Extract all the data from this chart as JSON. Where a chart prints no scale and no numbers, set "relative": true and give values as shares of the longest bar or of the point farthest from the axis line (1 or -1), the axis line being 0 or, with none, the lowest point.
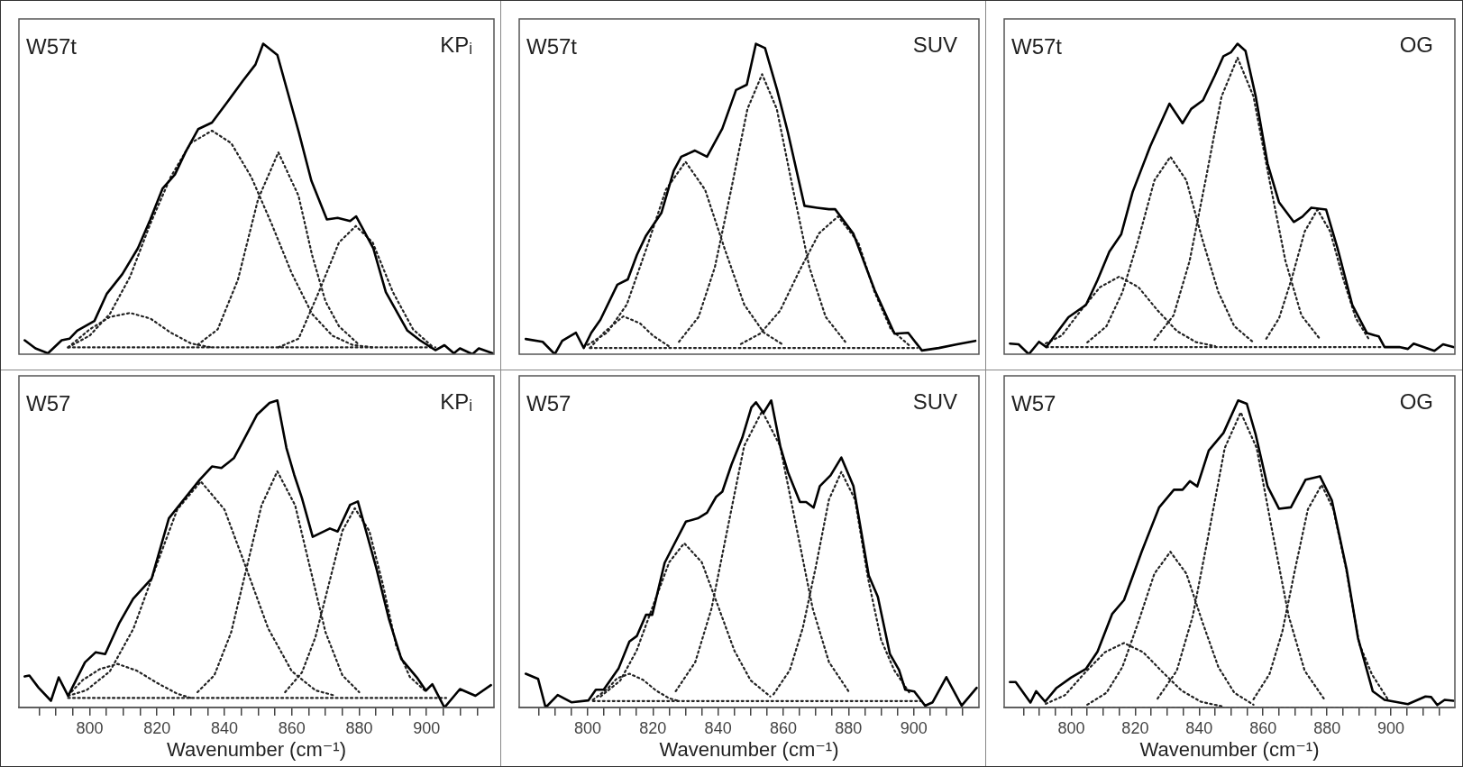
{
  "chart_data": [
    {
      "type": "line",
      "relative": true,
      "xlim": [
        779,
        920
      ],
      "tick_labels": false,
      "annotations": [
        "W57t",
        "KPᵢ"
      ],
      "series": [
        {
          "color": "#000000",
          "line_style": "solid",
          "x": [
            780.7,
            783.9,
            787.6,
            791.7,
            794,
            796.3,
            801.4,
            805.1,
            809.7,
            814.3,
            818,
            821.6,
            825.3,
            828.5,
            832.2,
            836.3,
            840.9,
            845.5,
            849.2,
            851.5,
            855.7,
            858.9,
            862.1,
            865.8,
            870.4,
            873.6,
            877.3,
            879.1,
            884.2,
            887.9,
            894.3,
            898,
            902.6,
            905.3,
            908.1,
            909.9,
            913.6,
            915.5,
            919.6
          ],
          "values": [
            0.045,
            0.019,
            0.003,
            0.045,
            0.05,
            0.076,
            0.107,
            0.195,
            0.258,
            0.341,
            0.434,
            0.533,
            0.579,
            0.652,
            0.725,
            0.746,
            0.813,
            0.881,
            0.933,
            1,
            0.964,
            0.839,
            0.714,
            0.559,
            0.434,
            0.439,
            0.429,
            0.444,
            0.341,
            0.2,
            0.076,
            0.045,
            0.013,
            0.029,
            0.003,
            0.019,
            0,
            0.019,
            0.003
          ]
        },
        {
          "color": "#222222",
          "line_style": "dotted",
          "x": [
            793.6,
            902.6
          ],
          "values": [
            0.022,
            0.022
          ]
        },
        {
          "color": "#222222",
          "line_style": "dotted",
          "x": [
            793.6,
            800,
            806,
            812,
            818,
            824,
            830,
            836
          ],
          "values": [
            0.022,
            0.08,
            0.12,
            0.133,
            0.115,
            0.07,
            0.035,
            0.022
          ]
        },
        {
          "color": "#222222",
          "line_style": "dotted",
          "x": [
            793.6,
            800,
            806,
            812,
            818,
            824,
            830,
            836.3,
            842,
            848,
            854,
            860,
            866,
            872,
            878,
            884
          ],
          "values": [
            0.022,
            0.06,
            0.13,
            0.25,
            0.42,
            0.57,
            0.68,
            0.72,
            0.68,
            0.57,
            0.42,
            0.26,
            0.13,
            0.06,
            0.03,
            0.022
          ]
        },
        {
          "color": "#222222",
          "line_style": "dotted",
          "x": [
            832,
            838,
            844,
            850,
            856,
            862,
            866,
            870,
            874,
            880
          ],
          "values": [
            0.03,
            0.08,
            0.24,
            0.5,
            0.65,
            0.51,
            0.32,
            0.17,
            0.09,
            0.03
          ]
        },
        {
          "color": "#222222",
          "line_style": "dotted",
          "x": [
            856,
            862,
            868,
            874,
            879,
            884,
            890,
            896,
            902
          ],
          "values": [
            0.022,
            0.05,
            0.2,
            0.36,
            0.413,
            0.36,
            0.2,
            0.08,
            0.022
          ]
        }
      ]
    },
    {
      "type": "line",
      "relative": true,
      "xlim": [
        779,
        920
      ],
      "tick_labels": false,
      "annotations": [
        "W57t",
        "SUV"
      ],
      "series": [
        {
          "color": "#000000",
          "line_style": "solid",
          "x": [
            781,
            786.2,
            789.9,
            792.2,
            796.4,
            798.8,
            801.1,
            803.9,
            809.1,
            812.3,
            815.1,
            817.9,
            822.6,
            826.4,
            828.7,
            832.9,
            836.6,
            841.3,
            845.5,
            848.8,
            851.6,
            854.4,
            858.1,
            861.4,
            866.5,
            870.3,
            874,
            875.9,
            881.5,
            888,
            894.1,
            898.3,
            902.5,
            907.7,
            913.3,
            918.9
          ],
          "values": [
            0.049,
            0.04,
            0,
            0.043,
            0.069,
            0.02,
            0.069,
            0.111,
            0.224,
            0.241,
            0.32,
            0.382,
            0.455,
            0.591,
            0.636,
            0.656,
            0.636,
            0.727,
            0.851,
            0.868,
            1,
            0.986,
            0.851,
            0.715,
            0.478,
            0.472,
            0.467,
            0.467,
            0.388,
            0.207,
            0.066,
            0.069,
            0.012,
            0.02,
            0.032,
            0.043
          ]
        },
        {
          "color": "#222222",
          "line_style": "dotted",
          "x": [
            800.7,
            901.1
          ],
          "values": [
            0.02,
            0.02
          ]
        },
        {
          "color": "#222222",
          "line_style": "dotted",
          "x": [
            800.7,
            805,
            810.9,
            816,
            820,
            825
          ],
          "values": [
            0.02,
            0.07,
            0.122,
            0.1,
            0.06,
            0.025
          ]
        },
        {
          "color": "#222222",
          "line_style": "dotted",
          "x": [
            800,
            806,
            812,
            818,
            824,
            830,
            836,
            842,
            848,
            854,
            860
          ],
          "values": [
            0.03,
            0.07,
            0.16,
            0.34,
            0.53,
            0.62,
            0.53,
            0.34,
            0.16,
            0.07,
            0.03
          ]
        },
        {
          "color": "#222222",
          "line_style": "dotted",
          "x": [
            828,
            834,
            839,
            844,
            849,
            853.5,
            858,
            863,
            868,
            873,
            879
          ],
          "values": [
            0.04,
            0.12,
            0.28,
            0.53,
            0.79,
            0.902,
            0.79,
            0.53,
            0.28,
            0.12,
            0.04
          ]
        },
        {
          "color": "#222222",
          "line_style": "dotted",
          "x": [
            847,
            853,
            859,
            865,
            871,
            876.8,
            883,
            888,
            893,
            899
          ],
          "values": [
            0.033,
            0.067,
            0.14,
            0.27,
            0.39,
            0.444,
            0.36,
            0.2,
            0.08,
            0.025
          ]
        }
      ]
    },
    {
      "type": "line",
      "relative": true,
      "xlim": [
        779,
        920
      ],
      "tick_labels": false,
      "annotations": [
        "W57t",
        "OG"
      ],
      "series": [
        {
          "color": "#000000",
          "line_style": "solid",
          "x": [
            780.8,
            783.5,
            786.7,
            789.9,
            792.2,
            795.4,
            799.1,
            804.6,
            808.2,
            811.9,
            815.6,
            819.2,
            824.7,
            830.7,
            834.8,
            837.5,
            841.2,
            844.9,
            847.6,
            849.9,
            852,
            854.5,
            857.7,
            861.4,
            865,
            869.6,
            872.3,
            875.1,
            879.7,
            883.3,
            887.9,
            892.5,
            896.2,
            898,
            902.6,
            905.3,
            907.1,
            913.6,
            916.3,
            919.5
          ],
          "values": [
            0.034,
            0.032,
            0,
            0.04,
            0.023,
            0.068,
            0.119,
            0.159,
            0.239,
            0.33,
            0.386,
            0.523,
            0.67,
            0.807,
            0.744,
            0.79,
            0.818,
            0.898,
            0.96,
            0.972,
            1,
            0.977,
            0.83,
            0.614,
            0.489,
            0.426,
            0.443,
            0.472,
            0.466,
            0.341,
            0.159,
            0.068,
            0.057,
            0.023,
            0.023,
            0.017,
            0.034,
            0.011,
            0.032,
            0.023
          ]
        },
        {
          "color": "#222222",
          "line_style": "dotted",
          "x": [
            792.2,
            897.1
          ],
          "values": [
            0.023,
            0.023
          ]
        },
        {
          "color": "#222222",
          "line_style": "dotted",
          "x": [
            792,
            797,
            803,
            809,
            815,
            821,
            827,
            833,
            839,
            845
          ],
          "values": [
            0.035,
            0.06,
            0.141,
            0.216,
            0.25,
            0.216,
            0.141,
            0.075,
            0.039,
            0.026
          ]
        },
        {
          "color": "#222222",
          "line_style": "dotted",
          "x": [
            805,
            811,
            816,
            821,
            826,
            831,
            836,
            841,
            846,
            851,
            857
          ],
          "values": [
            0.038,
            0.09,
            0.2,
            0.37,
            0.56,
            0.636,
            0.56,
            0.37,
            0.2,
            0.09,
            0.038
          ]
        },
        {
          "color": "#222222",
          "line_style": "dotted",
          "x": [
            826,
            832,
            837,
            842,
            847,
            852,
            857,
            862,
            867,
            872,
            878
          ],
          "values": [
            0.046,
            0.125,
            0.3,
            0.56,
            0.83,
            0.955,
            0.83,
            0.56,
            0.3,
            0.125,
            0.046
          ]
        },
        {
          "color": "#222222",
          "line_style": "dotted",
          "x": [
            861,
            865,
            869,
            873,
            877,
            881,
            885,
            889,
            893
          ],
          "values": [
            0.05,
            0.116,
            0.245,
            0.395,
            0.466,
            0.395,
            0.245,
            0.116,
            0.05
          ]
        }
      ]
    },
    {
      "type": "line",
      "relative": true,
      "xlim": [
        779,
        920
      ],
      "tick_labels": "x",
      "xlabel": "Wavenumber (cm⁻¹)",
      "xticks": [
        {
          "value": 785,
          "label": null
        },
        {
          "value": 790,
          "label": null
        },
        {
          "value": 795,
          "label": null
        },
        800,
        {
          "value": 805,
          "label": null
        },
        {
          "value": 810,
          "label": null
        },
        {
          "value": 815,
          "label": null
        },
        820,
        {
          "value": 825,
          "label": null
        },
        {
          "value": 830,
          "label": null
        },
        {
          "value": 835,
          "label": null
        },
        840,
        {
          "value": 845,
          "label": null
        },
        {
          "value": 850,
          "label": null
        },
        {
          "value": 855,
          "label": null
        },
        860,
        {
          "value": 865,
          "label": null
        },
        {
          "value": 870,
          "label": null
        },
        {
          "value": 875,
          "label": null
        },
        880,
        {
          "value": 885,
          "label": null
        },
        {
          "value": 890,
          "label": null
        },
        {
          "value": 895,
          "label": null
        },
        900,
        {
          "value": 905,
          "label": null
        },
        {
          "value": 910,
          "label": null
        },
        {
          "value": 915,
          "label": null
        }
      ],
      "annotations": [
        "W57",
        "KPᵢ"
      ],
      "series": [
        {
          "color": "#000000",
          "line_style": "solid",
          "x": [
            780.7,
            782.1,
            784.8,
            788.5,
            790.8,
            793.6,
            798.6,
            801.8,
            804.6,
            808.7,
            812.9,
            818.4,
            823.5,
            829,
            832.7,
            836.3,
            839.1,
            842.8,
            845.5,
            849.7,
            853.4,
            855.7,
            858.4,
            860.7,
            863,
            866.2,
            871.3,
            873.6,
            877.3,
            879.6,
            885.1,
            888.8,
            892.5,
            897.1,
            899.8,
            901.7,
            905.3,
            909.9,
            914.5,
            919.1
          ],
          "values": [
            0.101,
            0.104,
            0.065,
            0.022,
            0.098,
            0.038,
            0.147,
            0.18,
            0.174,
            0.273,
            0.354,
            0.42,
            0.616,
            0.692,
            0.742,
            0.785,
            0.78,
            0.812,
            0.867,
            0.954,
            0.992,
            1,
            0.845,
            0.758,
            0.682,
            0.556,
            0.583,
            0.573,
            0.66,
            0.671,
            0.453,
            0.289,
            0.158,
            0.098,
            0.055,
            0.076,
            0,
            0.06,
            0.038,
            0.073
          ]
        },
        {
          "color": "#222222",
          "line_style": "dotted",
          "x": [
            793.6,
            905.8
          ],
          "values": [
            0.031,
            0.031
          ]
        },
        {
          "color": "#222222",
          "line_style": "dotted",
          "x": [
            793.6,
            798,
            803,
            808.3,
            814,
            820,
            826,
            830
          ],
          "values": [
            0.04,
            0.09,
            0.125,
            0.142,
            0.12,
            0.08,
            0.045,
            0.031
          ]
        },
        {
          "color": "#222222",
          "line_style": "dotted",
          "x": [
            793.6,
            799,
            806,
            813,
            820,
            826,
            833,
            840,
            846,
            853,
            860,
            867,
            873
          ],
          "values": [
            0.038,
            0.056,
            0.118,
            0.257,
            0.468,
            0.645,
            0.736,
            0.645,
            0.468,
            0.257,
            0.118,
            0.056,
            0.038
          ]
        },
        {
          "color": "#222222",
          "line_style": "dotted",
          "x": [
            832,
            837,
            842,
            847,
            851,
            855.7,
            861,
            865,
            870,
            875,
            880
          ],
          "values": [
            0.05,
            0.105,
            0.245,
            0.474,
            0.658,
            0.769,
            0.658,
            0.474,
            0.245,
            0.105,
            0.05
          ]
        },
        {
          "color": "#222222",
          "line_style": "dotted",
          "x": [
            858,
            863,
            867,
            871,
            875,
            878.7,
            883,
            887,
            891,
            895,
            900
          ],
          "values": [
            0.05,
            0.114,
            0.229,
            0.402,
            0.575,
            0.649,
            0.575,
            0.402,
            0.2,
            0.1,
            0.05
          ]
        }
      ]
    },
    {
      "type": "line",
      "relative": true,
      "xlim": [
        779,
        920
      ],
      "tick_labels": "x",
      "xlabel": "Wavenumber (cm⁻¹)",
      "xticks": [
        {
          "value": 785,
          "label": null
        },
        {
          "value": 790,
          "label": null
        },
        {
          "value": 795,
          "label": null
        },
        800,
        {
          "value": 805,
          "label": null
        },
        {
          "value": 810,
          "label": null
        },
        {
          "value": 815,
          "label": null
        },
        820,
        {
          "value": 825,
          "label": null
        },
        {
          "value": 830,
          "label": null
        },
        {
          "value": 835,
          "label": null
        },
        840,
        {
          "value": 845,
          "label": null
        },
        {
          "value": 850,
          "label": null
        },
        {
          "value": 855,
          "label": null
        },
        860,
        {
          "value": 865,
          "label": null
        },
        {
          "value": 870,
          "label": null
        },
        {
          "value": 875,
          "label": null
        },
        880,
        {
          "value": 885,
          "label": null
        },
        {
          "value": 890,
          "label": null
        },
        {
          "value": 895,
          "label": null
        },
        900,
        {
          "value": 905,
          "label": null
        },
        {
          "value": 910,
          "label": null
        },
        {
          "value": 915,
          "label": null
        }
      ],
      "annotations": [
        "W57",
        "SUV"
      ],
      "series": [
        {
          "color": "#000000",
          "line_style": "solid",
          "x": [
            781,
            784.8,
            787.1,
            790.8,
            795,
            800.2,
            802.5,
            804.9,
            809.5,
            812.8,
            815.1,
            817.9,
            819.8,
            823.6,
            826.4,
            830.1,
            833.8,
            836.6,
            839.4,
            841.3,
            844.1,
            847.4,
            850.2,
            851.6,
            853.9,
            856.3,
            859.1,
            861.4,
            865.1,
            867,
            869.3,
            871.2,
            874.5,
            877.8,
            881.5,
            886.2,
            889,
            892.7,
            895.5,
            897.4,
            900.2,
            903.5,
            905.8,
            910,
            914.7,
            919.3
          ],
          "values": [
            0.11,
            0.093,
            0,
            0.041,
            0.017,
            0.023,
            0.058,
            0.058,
            0.128,
            0.215,
            0.233,
            0.302,
            0.302,
            0.471,
            0.529,
            0.605,
            0.616,
            0.634,
            0.686,
            0.703,
            0.791,
            0.878,
            0.977,
            0.994,
            0.959,
            1,
            0.849,
            0.767,
            0.669,
            0.669,
            0.651,
            0.721,
            0.756,
            0.814,
            0.721,
            0.43,
            0.36,
            0.174,
            0.122,
            0.058,
            0.052,
            0.006,
            0.017,
            0.099,
            0.006,
            0.064
          ]
        },
        {
          "color": "#222222",
          "line_style": "dotted",
          "x": [
            801.6,
            903
          ],
          "values": [
            0.021,
            0.021
          ]
        },
        {
          "color": "#222222",
          "line_style": "dotted",
          "x": [
            801.6,
            806,
            809,
            812.8,
            817,
            821,
            825,
            828
          ],
          "values": [
            0.025,
            0.06,
            0.095,
            0.11,
            0.09,
            0.055,
            0.03,
            0.021
          ]
        },
        {
          "color": "#222222",
          "line_style": "dotted",
          "x": [
            804,
            810,
            815,
            820,
            825,
            829.6,
            835,
            840,
            845,
            850,
            856
          ],
          "values": [
            0.036,
            0.088,
            0.185,
            0.33,
            0.473,
            0.535,
            0.473,
            0.33,
            0.185,
            0.088,
            0.036
          ]
        },
        {
          "color": "#222222",
          "line_style": "dotted",
          "x": [
            827,
            833,
            838,
            843,
            848,
            853.5,
            859,
            864,
            869,
            874,
            880
          ],
          "values": [
            0.053,
            0.148,
            0.323,
            0.588,
            0.852,
            0.965,
            0.852,
            0.588,
            0.323,
            0.148,
            0.053
          ]
        },
        {
          "color": "#222222",
          "line_style": "dotted",
          "x": [
            857,
            862,
            866,
            870,
            874,
            877.8,
            882,
            886,
            890,
            894,
            899
          ],
          "values": [
            0.043,
            0.122,
            0.26,
            0.46,
            0.677,
            0.767,
            0.677,
            0.42,
            0.22,
            0.122,
            0.043
          ]
        }
      ]
    },
    {
      "type": "line",
      "relative": true,
      "xlim": [
        779,
        920
      ],
      "tick_labels": "x",
      "xlabel": "Wavenumber (cm⁻¹)",
      "xticks": [
        {
          "value": 785,
          "label": null
        },
        {
          "value": 790,
          "label": null
        },
        {
          "value": 795,
          "label": null
        },
        800,
        {
          "value": 805,
          "label": null
        },
        {
          "value": 810,
          "label": null
        },
        {
          "value": 815,
          "label": null
        },
        820,
        {
          "value": 825,
          "label": null
        },
        {
          "value": 830,
          "label": null
        },
        {
          "value": 835,
          "label": null
        },
        840,
        {
          "value": 845,
          "label": null
        },
        {
          "value": 850,
          "label": null
        },
        {
          "value": 855,
          "label": null
        },
        860,
        {
          "value": 865,
          "label": null
        },
        {
          "value": 870,
          "label": null
        },
        {
          "value": 875,
          "label": null
        },
        880,
        {
          "value": 885,
          "label": null
        },
        {
          "value": 890,
          "label": null
        },
        {
          "value": 895,
          "label": null
        },
        900,
        {
          "value": 905,
          "label": null
        },
        {
          "value": 910,
          "label": null
        },
        {
          "value": 915,
          "label": null
        }
      ],
      "annotations": [
        "W57",
        "OG"
      ],
      "series": [
        {
          "color": "#000000",
          "line_style": "solid",
          "x": [
            780.8,
            782.6,
            787.2,
            789,
            791.8,
            795.4,
            800,
            804.6,
            808.2,
            812.8,
            816.5,
            822,
            827.5,
            832.1,
            834.8,
            837.1,
            839.4,
            843,
            847.6,
            852.2,
            854.9,
            857.7,
            861.4,
            865,
            868.7,
            873.3,
            877.8,
            881.5,
            886.1,
            889.7,
            894.3,
            898,
            905.3,
            910.8,
            912.6,
            914.5,
            916.8,
            919.5
          ],
          "values": [
            0.083,
            0.083,
            0.016,
            0.053,
            0.019,
            0.064,
            0.098,
            0.126,
            0.182,
            0.305,
            0.35,
            0.507,
            0.652,
            0.709,
            0.709,
            0.737,
            0.72,
            0.837,
            0.894,
            1,
            0.989,
            0.888,
            0.72,
            0.647,
            0.652,
            0.742,
            0.753,
            0.675,
            0.451,
            0.226,
            0.053,
            0.025,
            0.011,
            0.036,
            0.034,
            0.008,
            0.025,
            0.022
          ]
        },
        {
          "color": "#222222",
          "line_style": "dotted",
          "x": [
            791.3,
            901.6
          ],
          "values": [
            0,
            0
          ]
        },
        {
          "color": "#222222",
          "line_style": "dotted",
          "x": [
            792,
            798,
            804.5,
            810.5,
            816.5,
            822.5,
            828.5,
            834.5,
            840.5,
            847
          ],
          "values": [
            0.012,
            0.04,
            0.116,
            0.18,
            0.21,
            0.18,
            0.116,
            0.055,
            0.019,
            0.004
          ]
        },
        {
          "color": "#222222",
          "line_style": "dotted",
          "x": [
            805,
            811,
            816,
            821,
            826,
            831,
            836,
            841,
            846,
            851,
            857
          ],
          "values": [
            0.009,
            0.048,
            0.132,
            0.279,
            0.436,
            0.507,
            0.436,
            0.279,
            0.132,
            0.048,
            0.009
          ]
        },
        {
          "color": "#222222",
          "line_style": "dotted",
          "x": [
            827,
            833,
            838,
            843,
            848,
            853,
            858,
            863,
            868,
            873,
            879
          ],
          "values": [
            0.029,
            0.12,
            0.298,
            0.567,
            0.845,
            0.961,
            0.845,
            0.567,
            0.298,
            0.12,
            0.029
          ]
        },
        {
          "color": "#222222",
          "line_style": "dotted",
          "x": [
            857,
            862,
            866,
            870,
            874,
            878.3,
            882,
            886,
            890,
            894,
            899
          ],
          "values": [
            0.027,
            0.109,
            0.246,
            0.45,
            0.645,
            0.725,
            0.645,
            0.45,
            0.21,
            0.109,
            0.027
          ]
        }
      ]
    }
  ]
}
